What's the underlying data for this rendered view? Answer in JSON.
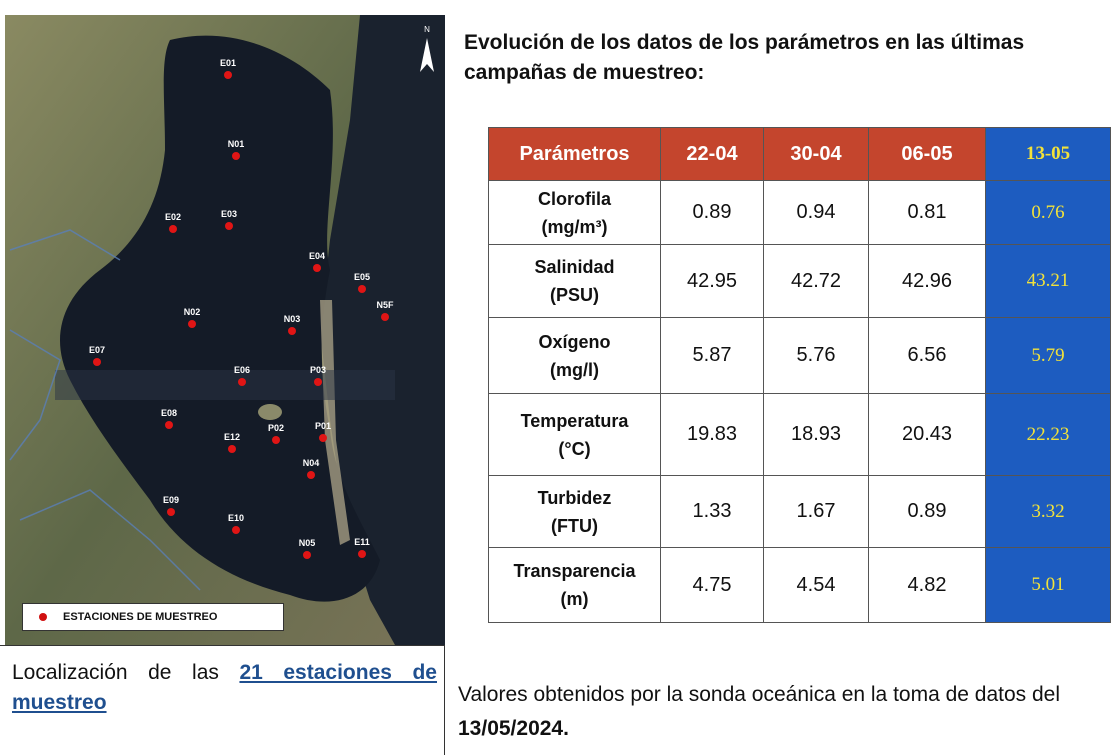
{
  "map": {
    "north": "N",
    "stations": [
      "E01",
      "N01",
      "E02",
      "E03",
      "E04",
      "E05",
      "N5F",
      "N02",
      "N03",
      "E07",
      "E06",
      "P03",
      "E08",
      "P02",
      "P01",
      "E12",
      "N04",
      "E09",
      "E10",
      "N05",
      "E11"
    ],
    "legend": "ESTACIONES DE MUESTREO"
  },
  "caption_left": {
    "text": "Localización de las",
    "link": "21 estaciones de muestreo"
  },
  "heading": "Evolución de los datos de los parámetros en las últimas campañas de muestreo:",
  "table": {
    "header": [
      "Parámetros",
      "22-04",
      "30-04",
      "06-05",
      "13-05"
    ],
    "rows": [
      {
        "name": "Clorofila",
        "unit": "(mg/m³)",
        "values": [
          "0.89",
          "0.94",
          "0.81",
          "0.76"
        ]
      },
      {
        "name": "Salinidad",
        "unit": "(PSU)",
        "values": [
          "42.95",
          "42.72",
          "42.96",
          "43.21"
        ]
      },
      {
        "name": "Oxígeno",
        "unit": "(mg/l)",
        "values": [
          "5.87",
          "5.76",
          "6.56",
          "5.79"
        ]
      },
      {
        "name": "Temperatura",
        "unit": "(°C)",
        "values": [
          "19.83",
          "18.93",
          "20.43",
          "22.23"
        ]
      },
      {
        "name": "Turbidez",
        "unit": "(FTU)",
        "values": [
          "1.33",
          "1.67",
          "0.89",
          "3.32"
        ]
      },
      {
        "name": "Transparencia",
        "unit": "(m)",
        "values": [
          "4.75",
          "4.54",
          "4.82",
          "5.01"
        ]
      }
    ]
  },
  "caption_right": {
    "text": "Valores obtenidos por la sonda oceánica en la toma de datos del",
    "date": "13/05/2024",
    "end": "."
  }
}
